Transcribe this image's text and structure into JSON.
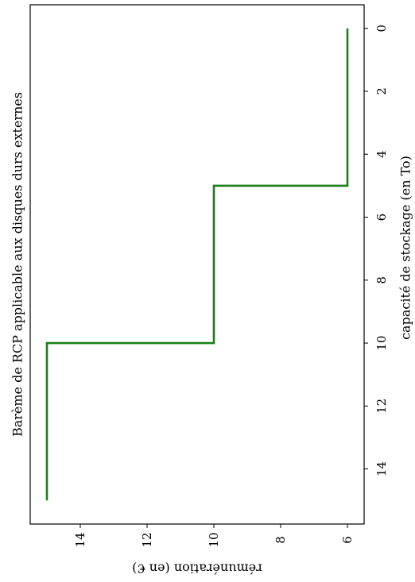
{
  "chart_data": {
    "type": "line",
    "title": "Barème de RCP applicable aux disques durs externes",
    "xlabel": "capacité de stockage (en To)",
    "ylabel": "rémunération (en €)",
    "x": [
      0,
      5,
      5,
      10,
      10,
      15
    ],
    "series": [
      {
        "values": [
          6,
          6,
          10,
          10,
          15,
          15
        ],
        "color": "#1a7f1a"
      }
    ],
    "xlim": [
      -0.75,
      15.75
    ],
    "ylim": [
      5.5,
      15.5
    ],
    "xticks": [
      0,
      2,
      4,
      6,
      8,
      10,
      12,
      14
    ],
    "yticks": [
      6,
      8,
      10,
      12,
      14
    ],
    "grid": false,
    "orientation": "rotated 90° clockwise"
  }
}
